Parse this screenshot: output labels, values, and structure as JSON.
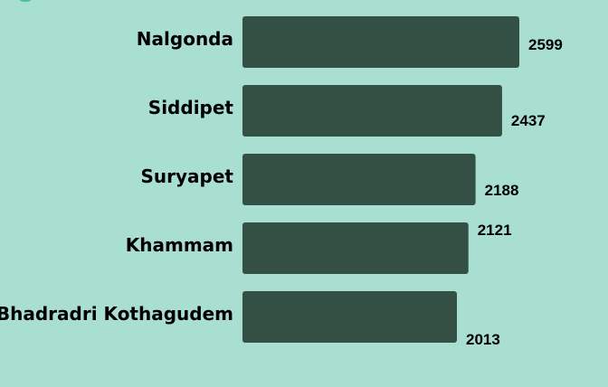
{
  "chart_data": {
    "type": "bar",
    "orientation": "horizontal",
    "categories": [
      "Nalgonda",
      "Siddipet",
      "Suryapet",
      "Khammam",
      "Bhadradri Kothagudem"
    ],
    "values": [
      2599,
      2437,
      2188,
      2121,
      2013
    ],
    "value_labels": [
      "2599",
      "2437",
      "2188",
      "2121",
      "2013"
    ],
    "title": "",
    "xlabel": "",
    "ylabel": "",
    "grid": false,
    "legend": "none"
  },
  "colors": {
    "background": "#a8dfd0",
    "bar": "#344f43",
    "text": "#000000",
    "accent_partial": "#3fc29f"
  }
}
